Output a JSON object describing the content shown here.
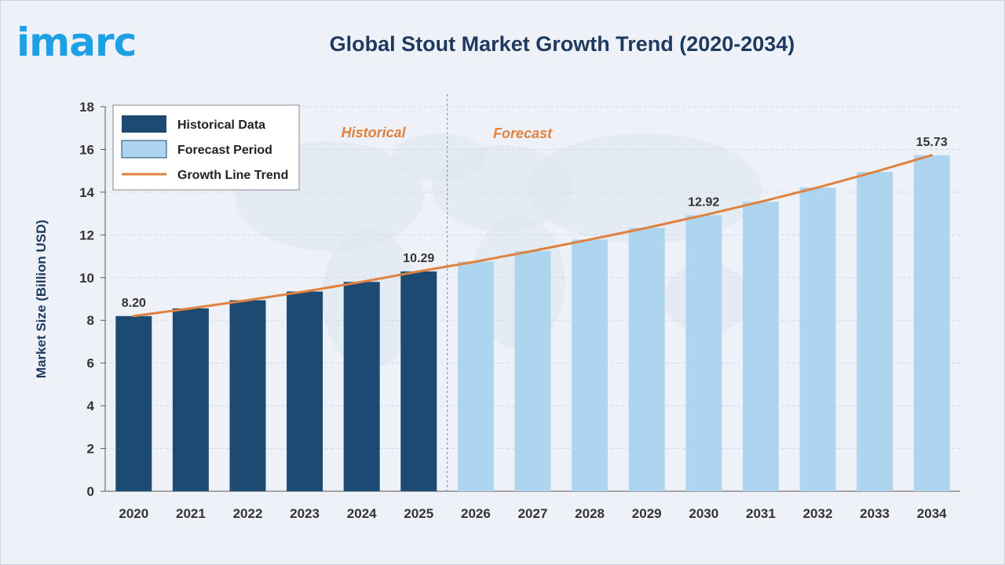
{
  "brand": {
    "logo_text": "imarc"
  },
  "chart_data": {
    "type": "bar",
    "title": "Global Stout Market Growth Trend (2020-2034)",
    "xlabel": "",
    "ylabel": "Market Size (Billion USD)",
    "ylim": [
      0,
      18
    ],
    "yticks": [
      0,
      2,
      4,
      6,
      8,
      10,
      12,
      14,
      16,
      18
    ],
    "grid": true,
    "categories": [
      "2020",
      "2021",
      "2022",
      "2023",
      "2024",
      "2025",
      "2026",
      "2027",
      "2028",
      "2029",
      "2030",
      "2031",
      "2032",
      "2033",
      "2034"
    ],
    "values": [
      8.2,
      8.56,
      8.94,
      9.35,
      9.8,
      10.29,
      10.75,
      11.25,
      11.78,
      12.33,
      12.92,
      13.55,
      14.22,
      14.95,
      15.73
    ],
    "historical_count": 6,
    "data_labels": [
      {
        "index": 0,
        "text": "8.20"
      },
      {
        "index": 5,
        "text": "10.29"
      },
      {
        "index": 10,
        "text": "12.92"
      },
      {
        "index": 14,
        "text": "15.73"
      }
    ],
    "region_labels": {
      "historical": "Historical",
      "forecast": "Forecast"
    },
    "legend": {
      "placement": "top-left",
      "entries": [
        "Historical Data",
        "Forecast Period",
        "Growth Line Trend"
      ]
    },
    "colors": {
      "historical": "#1c4a73",
      "forecast": "#aed5f0",
      "trend": "#e0823f",
      "text": "#1f3a5f",
      "grid": "#d3d9e2"
    }
  }
}
